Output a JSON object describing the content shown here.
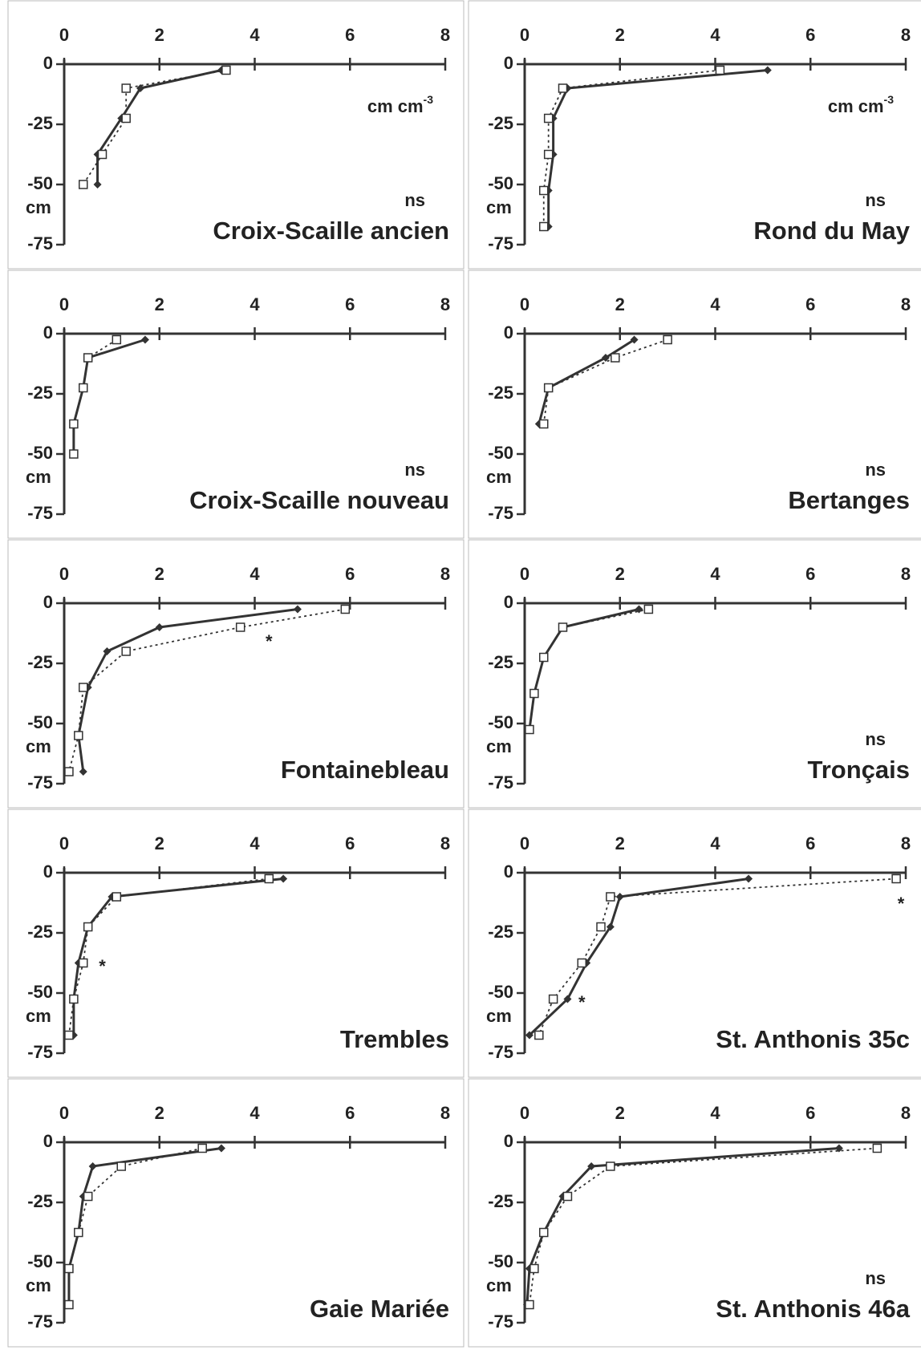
{
  "chart_data": [
    {
      "type": "line",
      "title": "Croix-Scaille ancien",
      "unit_label": "cm cm",
      "unit_exponent": "-3",
      "y_label": "cm",
      "note": "ns",
      "xlim": [
        0,
        8
      ],
      "xticks": [
        0,
        2,
        4,
        6,
        8
      ],
      "ylim": [
        -75,
        0
      ],
      "yticks": [
        0,
        -25,
        -50,
        -75
      ],
      "series": [
        {
          "color": "#333333",
          "style": "solid",
          "marker": "diamond",
          "x": [
            3.3,
            1.6,
            1.2,
            0.7,
            0.7
          ],
          "values": [
            -2.5,
            -10,
            -22.5,
            -37.5,
            -50
          ]
        },
        {
          "color": "#333333",
          "style": "dotted",
          "marker": "square",
          "x": [
            3.4,
            1.3,
            1.3,
            0.8,
            0.4
          ],
          "values": [
            -2.5,
            -10,
            -22.5,
            -37.5,
            -50
          ]
        }
      ]
    },
    {
      "type": "line",
      "title": "Rond du May",
      "unit_label": "cm cm",
      "unit_exponent": "-3",
      "y_label": "cm",
      "note": "ns",
      "xlim": [
        0,
        8
      ],
      "xticks": [
        0,
        2,
        4,
        6,
        8
      ],
      "ylim": [
        -75,
        0
      ],
      "yticks": [
        0,
        -25,
        -50,
        -75
      ],
      "series": [
        {
          "color": "#333333",
          "style": "solid",
          "marker": "diamond",
          "x": [
            5.1,
            0.9,
            0.6,
            0.6,
            0.5,
            0.5
          ],
          "values": [
            -2.5,
            -10,
            -22.5,
            -37.5,
            -52.5,
            -67.5
          ]
        },
        {
          "color": "#333333",
          "style": "dotted",
          "marker": "square",
          "x": [
            4.1,
            0.8,
            0.5,
            0.5,
            0.4,
            0.4
          ],
          "values": [
            -2.5,
            -10,
            -22.5,
            -37.5,
            -52.5,
            -67.5
          ]
        }
      ]
    },
    {
      "type": "line",
      "title": "Croix-Scaille nouveau",
      "y_label": "cm",
      "note": "ns",
      "xlim": [
        0,
        8
      ],
      "xticks": [
        0,
        2,
        4,
        6,
        8
      ],
      "ylim": [
        -75,
        0
      ],
      "yticks": [
        0,
        -25,
        -50,
        -75
      ],
      "series": [
        {
          "color": "#333333",
          "style": "solid",
          "marker": "diamond",
          "x": [
            1.7,
            0.5,
            0.4,
            0.2,
            0.2
          ],
          "values": [
            -2.5,
            -10,
            -22.5,
            -37.5,
            -50
          ]
        },
        {
          "color": "#333333",
          "style": "dotted",
          "marker": "square",
          "x": [
            1.1,
            0.5,
            0.4,
            0.2,
            0.2
          ],
          "values": [
            -2.5,
            -10,
            -22.5,
            -37.5,
            -50
          ]
        }
      ]
    },
    {
      "type": "line",
      "title": "Bertanges",
      "y_label": "cm",
      "note": "ns",
      "xlim": [
        0,
        8
      ],
      "xticks": [
        0,
        2,
        4,
        6,
        8
      ],
      "ylim": [
        -75,
        0
      ],
      "yticks": [
        0,
        -25,
        -50,
        -75
      ],
      "series": [
        {
          "color": "#333333",
          "style": "solid",
          "marker": "diamond",
          "x": [
            2.3,
            1.7,
            0.5,
            0.3
          ],
          "values": [
            -2.5,
            -10,
            -22.5,
            -37.5
          ]
        },
        {
          "color": "#333333",
          "style": "dotted",
          "marker": "square",
          "x": [
            3.0,
            1.9,
            0.5,
            0.4
          ],
          "values": [
            -2.5,
            -10,
            -22.5,
            -37.5
          ]
        }
      ]
    },
    {
      "type": "line",
      "title": "Fontainebleau",
      "y_label": "cm",
      "xlim": [
        0,
        8
      ],
      "xticks": [
        0,
        2,
        4,
        6,
        8
      ],
      "ylim": [
        -75,
        0
      ],
      "yticks": [
        0,
        -25,
        -50,
        -75
      ],
      "annotations": [
        {
          "text": "*",
          "x": 4.3,
          "y": -15
        }
      ],
      "series": [
        {
          "color": "#333333",
          "style": "solid",
          "marker": "diamond",
          "x": [
            4.9,
            2.0,
            0.9,
            0.5,
            0.3,
            0.4
          ],
          "values": [
            -2.5,
            -10,
            -20,
            -35,
            -55,
            -70
          ]
        },
        {
          "color": "#333333",
          "style": "dotted",
          "marker": "square",
          "x": [
            5.9,
            3.7,
            1.3,
            0.4,
            0.3,
            0.1
          ],
          "values": [
            -2.5,
            -10,
            -20,
            -35,
            -55,
            -70
          ]
        }
      ]
    },
    {
      "type": "line",
      "title": "Tronçais",
      "y_label": "cm",
      "note": "ns",
      "xlim": [
        0,
        8
      ],
      "xticks": [
        0,
        2,
        4,
        6,
        8
      ],
      "ylim": [
        -75,
        0
      ],
      "yticks": [
        0,
        -25,
        -50,
        -75
      ],
      "series": [
        {
          "color": "#333333",
          "style": "solid",
          "marker": "diamond",
          "x": [
            2.4,
            0.8,
            0.4,
            0.2,
            0.1
          ],
          "values": [
            -2.5,
            -10,
            -22.5,
            -37.5,
            -52.5
          ]
        },
        {
          "color": "#333333",
          "style": "dotted",
          "marker": "square",
          "x": [
            2.6,
            0.8,
            0.4,
            0.2,
            0.1
          ],
          "values": [
            -2.5,
            -10,
            -22.5,
            -37.5,
            -52.5
          ]
        }
      ]
    },
    {
      "type": "line",
      "title": "Trembles",
      "y_label": "cm",
      "xlim": [
        0,
        8
      ],
      "xticks": [
        0,
        2,
        4,
        6,
        8
      ],
      "ylim": [
        -75,
        0
      ],
      "yticks": [
        0,
        -25,
        -50,
        -75
      ],
      "annotations": [
        {
          "text": "*",
          "x": 0.8,
          "y": -38
        }
      ],
      "series": [
        {
          "color": "#333333",
          "style": "solid",
          "marker": "diamond",
          "x": [
            4.6,
            1.0,
            0.5,
            0.3,
            0.2,
            0.2
          ],
          "values": [
            -2.5,
            -10,
            -22.5,
            -37.5,
            -52.5,
            -67.5
          ]
        },
        {
          "color": "#333333",
          "style": "dotted",
          "marker": "square",
          "x": [
            4.3,
            1.1,
            0.5,
            0.4,
            0.2,
            0.1
          ],
          "values": [
            -2.5,
            -10,
            -22.5,
            -37.5,
            -52.5,
            -67.5
          ]
        }
      ]
    },
    {
      "type": "line",
      "title": "St. Anthonis 35c",
      "y_label": "cm",
      "xlim": [
        0,
        8
      ],
      "xticks": [
        0,
        2,
        4,
        6,
        8
      ],
      "ylim": [
        -75,
        0
      ],
      "yticks": [
        0,
        -25,
        -50,
        -75
      ],
      "annotations": [
        {
          "text": "*",
          "x": 7.9,
          "y": -12
        },
        {
          "text": "*",
          "x": 1.2,
          "y": -53
        }
      ],
      "series": [
        {
          "color": "#333333",
          "style": "solid",
          "marker": "diamond",
          "x": [
            4.7,
            2.0,
            1.8,
            1.3,
            0.9,
            0.1
          ],
          "values": [
            -2.5,
            -10,
            -22.5,
            -37.5,
            -52.5,
            -67.5
          ]
        },
        {
          "color": "#333333",
          "style": "dotted",
          "marker": "square",
          "x": [
            7.8,
            1.8,
            1.6,
            1.2,
            0.6,
            0.3
          ],
          "values": [
            -2.5,
            -10,
            -22.5,
            -37.5,
            -52.5,
            -67.5
          ]
        }
      ]
    },
    {
      "type": "line",
      "title": "Gaie Mariée",
      "y_label": "cm",
      "xlim": [
        0,
        8
      ],
      "xticks": [
        0,
        2,
        4,
        6,
        8
      ],
      "ylim": [
        -75,
        0
      ],
      "yticks": [
        0,
        -25,
        -50,
        -75
      ],
      "series": [
        {
          "color": "#333333",
          "style": "solid",
          "marker": "diamond",
          "x": [
            3.3,
            0.6,
            0.4,
            0.3,
            0.1,
            0.1
          ],
          "values": [
            -2.5,
            -10,
            -22.5,
            -37.5,
            -52.5,
            -67.5
          ]
        },
        {
          "color": "#333333",
          "style": "dotted",
          "marker": "square",
          "x": [
            2.9,
            1.2,
            0.5,
            0.3,
            0.1,
            0.1
          ],
          "values": [
            -2.5,
            -10,
            -22.5,
            -37.5,
            -52.5,
            -67.5
          ]
        }
      ]
    },
    {
      "type": "line",
      "title": "St. Anthonis 46a",
      "y_label": "cm",
      "note": "ns",
      "xlim": [
        0,
        8
      ],
      "xticks": [
        0,
        2,
        4,
        6,
        8
      ],
      "ylim": [
        -75,
        0
      ],
      "yticks": [
        0,
        -25,
        -50,
        -75
      ],
      "series": [
        {
          "color": "#333333",
          "style": "solid",
          "marker": "diamond",
          "x": [
            6.6,
            1.4,
            0.8,
            0.4,
            0.1,
            0.05
          ],
          "values": [
            -2.5,
            -10,
            -22.5,
            -37.5,
            -52.5,
            -67.5
          ]
        },
        {
          "color": "#333333",
          "style": "dotted",
          "marker": "square",
          "x": [
            7.4,
            1.8,
            0.9,
            0.4,
            0.2,
            0.1
          ],
          "values": [
            -2.5,
            -10,
            -22.5,
            -37.5,
            -52.5,
            -67.5
          ]
        }
      ]
    }
  ]
}
